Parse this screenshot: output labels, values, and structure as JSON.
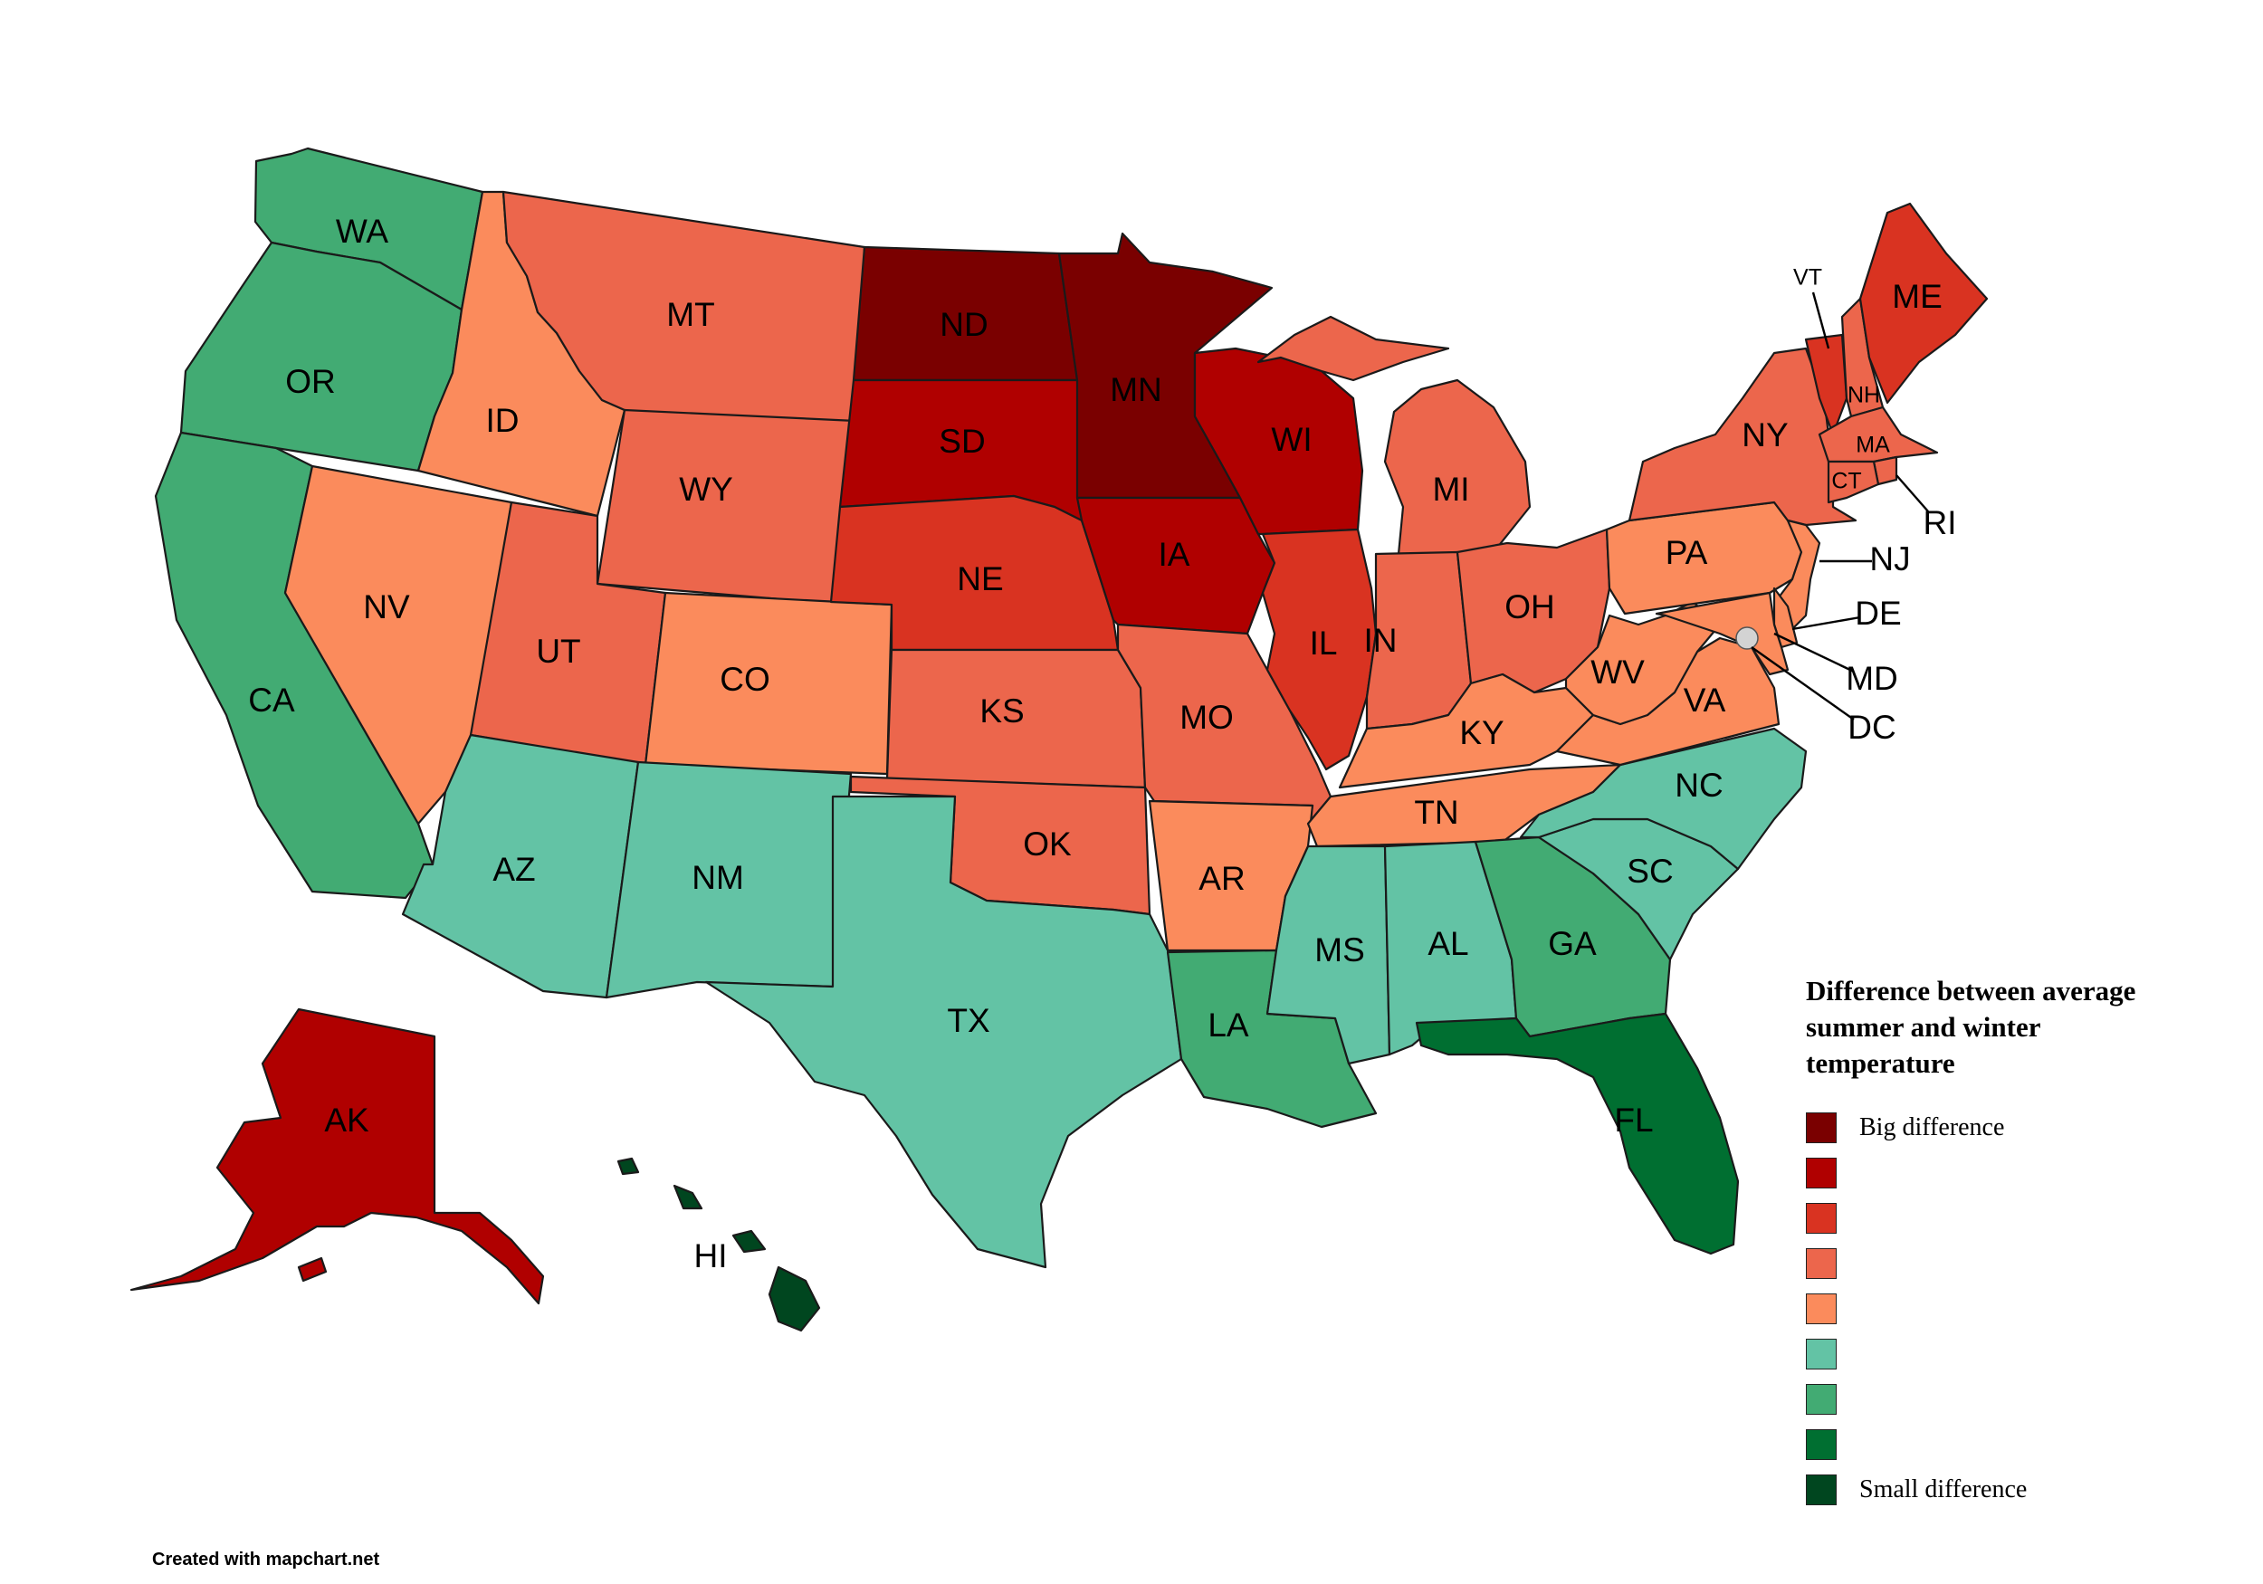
{
  "legend": {
    "title": "Difference between average summer and winter temperature",
    "levels": [
      {
        "color": "#7a0000",
        "label": "Big difference"
      },
      {
        "color": "#b00000",
        "label": ""
      },
      {
        "color": "#d93321",
        "label": ""
      },
      {
        "color": "#ec664c",
        "label": ""
      },
      {
        "color": "#fb8b5c",
        "label": ""
      },
      {
        "color": "#63c3a5",
        "label": ""
      },
      {
        "color": "#42ab73",
        "label": ""
      },
      {
        "color": "#006f31",
        "label": ""
      },
      {
        "color": "#00461f",
        "label": "Small difference"
      }
    ]
  },
  "credit": "Created with mapchart.net",
  "dc_marker_color": "#d3d3d3",
  "states": [
    {
      "abbr": "WA",
      "level": 6
    },
    {
      "abbr": "OR",
      "level": 6
    },
    {
      "abbr": "CA",
      "level": 6
    },
    {
      "abbr": "ID",
      "level": 4
    },
    {
      "abbr": "NV",
      "level": 4
    },
    {
      "abbr": "MT",
      "level": 3
    },
    {
      "abbr": "WY",
      "level": 3
    },
    {
      "abbr": "UT",
      "level": 3
    },
    {
      "abbr": "CO",
      "level": 4
    },
    {
      "abbr": "AZ",
      "level": 5
    },
    {
      "abbr": "NM",
      "level": 5
    },
    {
      "abbr": "ND",
      "level": 0
    },
    {
      "abbr": "SD",
      "level": 1
    },
    {
      "abbr": "NE",
      "level": 2
    },
    {
      "abbr": "KS",
      "level": 3
    },
    {
      "abbr": "OK",
      "level": 3
    },
    {
      "abbr": "TX",
      "level": 5
    },
    {
      "abbr": "MN",
      "level": 0
    },
    {
      "abbr": "IA",
      "level": 1
    },
    {
      "abbr": "MO",
      "level": 3
    },
    {
      "abbr": "AR",
      "level": 4
    },
    {
      "abbr": "LA",
      "level": 6
    },
    {
      "abbr": "WI",
      "level": 1
    },
    {
      "abbr": "IL",
      "level": 2
    },
    {
      "abbr": "MI",
      "level": 3
    },
    {
      "abbr": "IN",
      "level": 3
    },
    {
      "abbr": "OH",
      "level": 3
    },
    {
      "abbr": "KY",
      "level": 4
    },
    {
      "abbr": "TN",
      "level": 4
    },
    {
      "abbr": "MS",
      "level": 5
    },
    {
      "abbr": "AL",
      "level": 5
    },
    {
      "abbr": "GA",
      "level": 6
    },
    {
      "abbr": "FL",
      "level": 7
    },
    {
      "abbr": "SC",
      "level": 5
    },
    {
      "abbr": "NC",
      "level": 5
    },
    {
      "abbr": "VA",
      "level": 4
    },
    {
      "abbr": "WV",
      "level": 4
    },
    {
      "abbr": "PA",
      "level": 4
    },
    {
      "abbr": "NY",
      "level": 3
    },
    {
      "abbr": "VT",
      "level": 2
    },
    {
      "abbr": "NH",
      "level": 3
    },
    {
      "abbr": "ME",
      "level": 2
    },
    {
      "abbr": "MA",
      "level": 3
    },
    {
      "abbr": "RI",
      "level": 3
    },
    {
      "abbr": "CT",
      "level": 3
    },
    {
      "abbr": "NJ",
      "level": 4
    },
    {
      "abbr": "DE",
      "level": 4
    },
    {
      "abbr": "MD",
      "level": 4
    },
    {
      "abbr": "DC",
      "level": null
    },
    {
      "abbr": "AK",
      "level": 1
    },
    {
      "abbr": "HI",
      "level": 8
    }
  ]
}
